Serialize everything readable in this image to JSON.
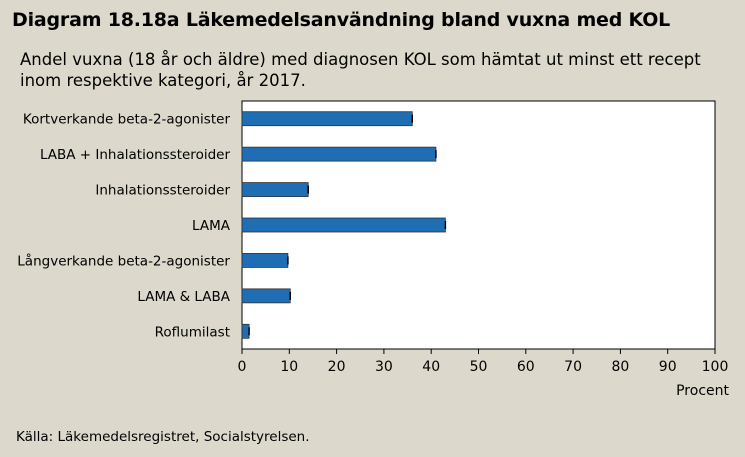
{
  "header": {
    "title": "Diagram 18.18a Läkemedelsanvändning bland vuxna med KOL",
    "subtitle_line1": "Andel vuxna (18 år och äldre) med diagnosen KOL som hämtat ut minst ett recept",
    "subtitle_line2": "inom respektive kategori, år 2017."
  },
  "footer": {
    "source": "Källa: Läkemedelsregistret, Socialstyrelsen."
  },
  "colors": {
    "background": "#dcd9cc",
    "plot_background": "#ffffff",
    "bar": "#1f6eb4",
    "bar_edge": "#333333",
    "error_bar": "#000000"
  },
  "chart_data": {
    "type": "bar",
    "orientation": "horizontal",
    "categories": [
      "Kortverkande beta-2-agonister",
      "LABA + Inhalationssteroider",
      "Inhalationssteroider",
      "LAMA",
      "Långverkande beta-2-agonister",
      "LAMA & LABA",
      "Roflumilast"
    ],
    "values": [
      36,
      41,
      14,
      43,
      9.7,
      10.2,
      1.5
    ],
    "xlabel": "Procent",
    "xlim": [
      0,
      100
    ],
    "xticks": [
      "0",
      "10",
      "20",
      "30",
      "40",
      "50",
      "60",
      "70",
      "80",
      "90",
      "100"
    ],
    "grid": false,
    "error_bars": true
  }
}
